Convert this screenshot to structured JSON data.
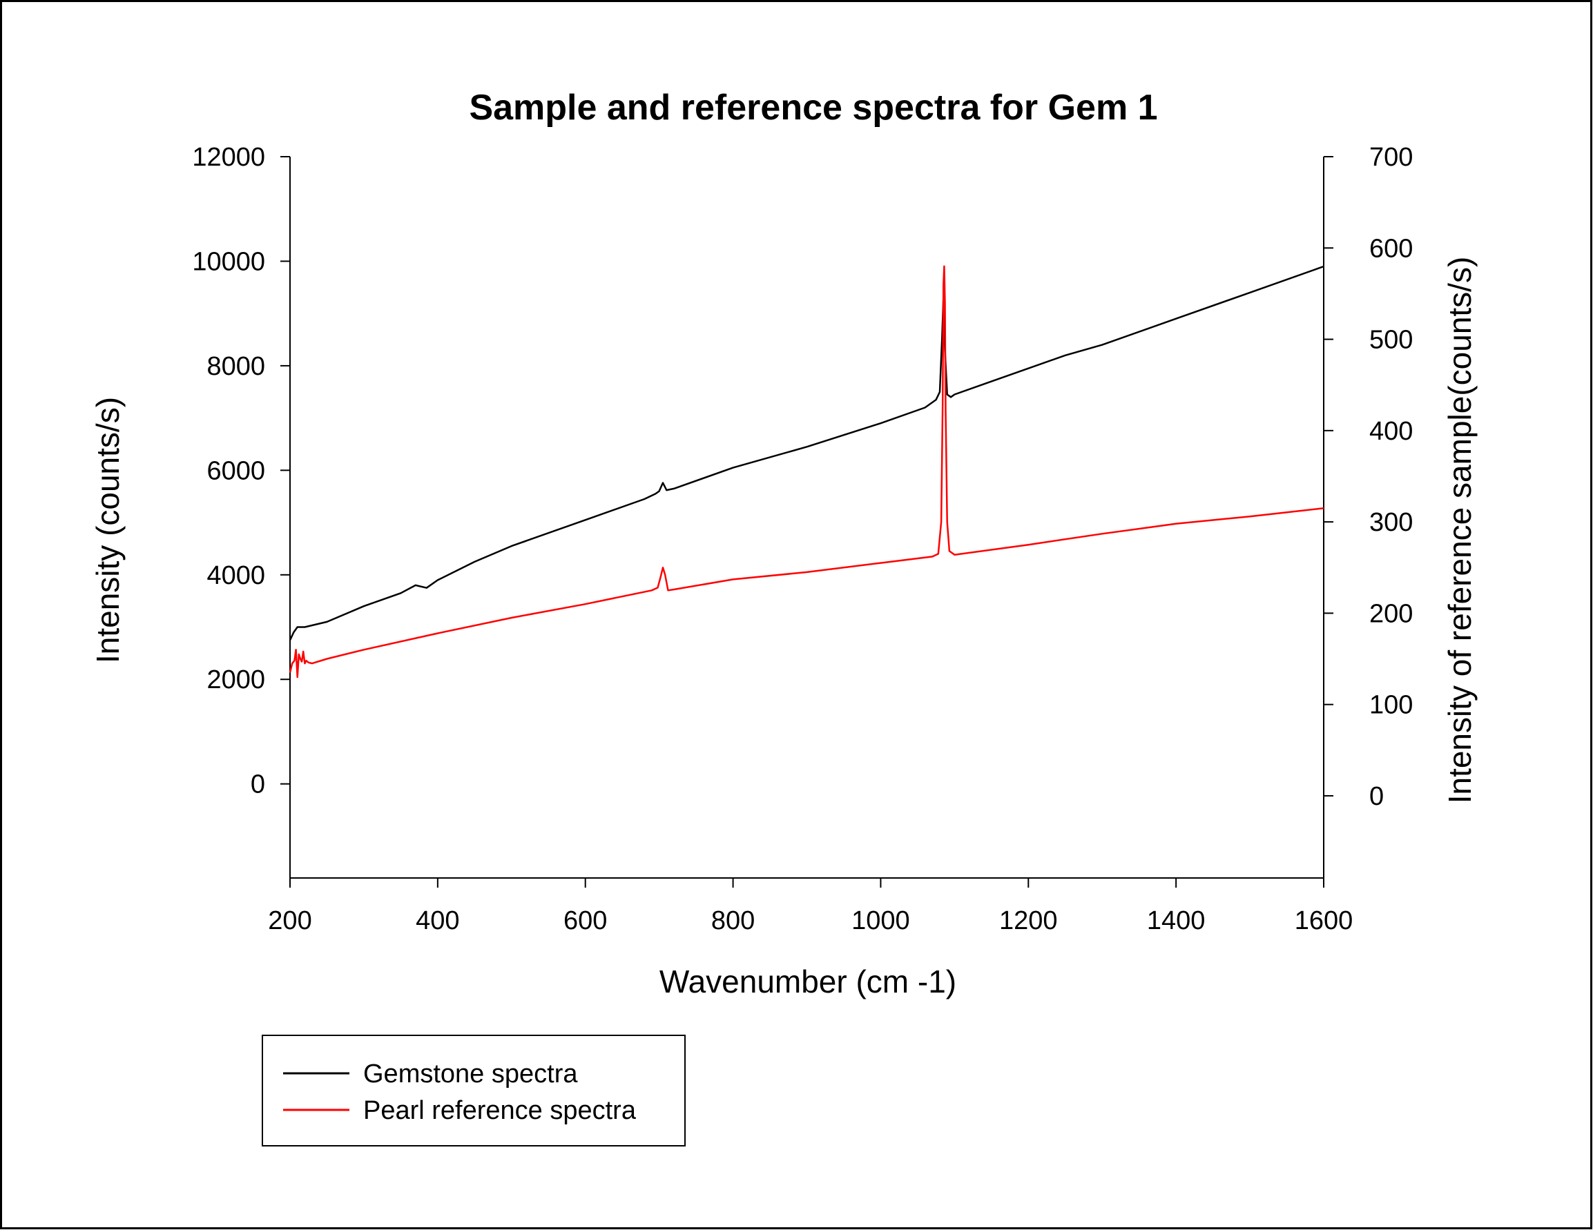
{
  "chart_data": {
    "type": "line",
    "title": "Sample and reference spectra for Gem 1",
    "xlabel": "Wavenumber (cm -1)",
    "ylabel": "Intensity (counts/s)",
    "y2label": "Intensity of reference sample(counts/s)",
    "xlim": [
      200,
      1600
    ],
    "ylim": [
      -1800,
      12000
    ],
    "y2lim": [
      -90,
      700
    ],
    "xticks": [
      "200",
      "400",
      "600",
      "800",
      "1000",
      "1200",
      "1400",
      "1600"
    ],
    "yticks": [
      "0",
      "2000",
      "4000",
      "6000",
      "8000",
      "10000",
      "12000"
    ],
    "y2ticks": [
      "0",
      "100",
      "200",
      "300",
      "400",
      "500",
      "600",
      "700"
    ],
    "legend_position": "bottom-left",
    "grid": false,
    "series": [
      {
        "name": "Gemstone spectra",
        "axis": "left",
        "color": "#000000",
        "x": [
          200,
          205,
          210,
          220,
          250,
          300,
          350,
          370,
          385,
          400,
          450,
          500,
          600,
          680,
          695,
          700,
          705,
          710,
          720,
          800,
          900,
          1000,
          1060,
          1075,
          1080,
          1083,
          1085,
          1087,
          1090,
          1095,
          1100,
          1150,
          1200,
          1250,
          1300,
          1400,
          1500,
          1600
        ],
        "y": [
          2750,
          2900,
          3000,
          3000,
          3100,
          3400,
          3650,
          3800,
          3750,
          3900,
          4250,
          4550,
          5050,
          5450,
          5550,
          5600,
          5760,
          5620,
          5650,
          6050,
          6450,
          6900,
          7200,
          7350,
          7500,
          8500,
          9300,
          8300,
          7450,
          7400,
          7450,
          7700,
          7950,
          8200,
          8400,
          8900,
          9400,
          9900
        ]
      },
      {
        "name": "Pearl reference spectra",
        "axis": "right",
        "color": "#ff0000",
        "x": [
          200,
          203,
          206,
          208,
          210,
          212,
          214,
          216,
          218,
          220,
          222,
          225,
          230,
          250,
          300,
          400,
          500,
          600,
          690,
          698,
          702,
          705,
          708,
          712,
          720,
          800,
          900,
          1000,
          1070,
          1078,
          1082,
          1084,
          1085,
          1086,
          1087,
          1088,
          1090,
          1093,
          1100,
          1200,
          1300,
          1400,
          1500,
          1600
        ],
        "y": [
          135,
          145,
          148,
          160,
          130,
          155,
          150,
          147,
          158,
          145,
          148,
          146,
          145,
          150,
          160,
          178,
          195,
          210,
          225,
          228,
          240,
          250,
          242,
          225,
          226,
          237,
          245,
          255,
          262,
          265,
          300,
          430,
          560,
          580,
          540,
          420,
          300,
          268,
          264,
          275,
          287,
          298,
          306,
          315
        ]
      }
    ]
  }
}
